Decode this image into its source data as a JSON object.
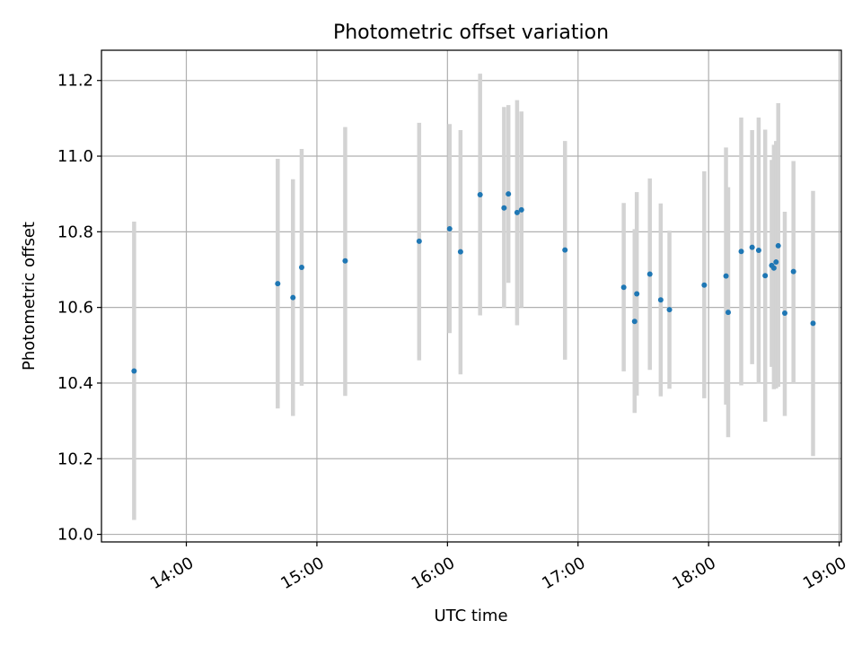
{
  "chart_data": {
    "type": "scatter",
    "title": "Photometric offset variation",
    "xlabel": "UTC time",
    "ylabel": "Photometric offset",
    "xlim": [
      "13:21",
      "19:01"
    ],
    "ylim": [
      9.98,
      11.28
    ],
    "xticks": [
      "14:00",
      "15:00",
      "16:00",
      "17:00",
      "18:00",
      "19:00"
    ],
    "yticks": [
      "10.0",
      "10.2",
      "10.4",
      "10.6",
      "10.8",
      "11.0",
      "11.2"
    ],
    "grid": true,
    "colors": {
      "point": "#1f77b4",
      "errorbar": "#d3d3d3",
      "grid": "#b0b0b0"
    },
    "points": [
      {
        "x": "13:36",
        "y": 10.432,
        "ylow": 10.038,
        "yhigh": 10.827
      },
      {
        "x": "14:42",
        "y": 10.663,
        "ylow": 10.333,
        "yhigh": 10.993
      },
      {
        "x": "14:49",
        "y": 10.626,
        "ylow": 10.313,
        "yhigh": 10.939
      },
      {
        "x": "14:53",
        "y": 10.706,
        "ylow": 10.393,
        "yhigh": 11.019
      },
      {
        "x": "15:13",
        "y": 10.723,
        "ylow": 10.366,
        "yhigh": 11.077
      },
      {
        "x": "15:47",
        "y": 10.775,
        "ylow": 10.46,
        "yhigh": 11.088
      },
      {
        "x": "16:01",
        "y": 10.808,
        "ylow": 10.532,
        "yhigh": 11.085
      },
      {
        "x": "16:06",
        "y": 10.747,
        "ylow": 10.423,
        "yhigh": 11.069
      },
      {
        "x": "16:15",
        "y": 10.898,
        "ylow": 10.579,
        "yhigh": 11.218
      },
      {
        "x": "16:26",
        "y": 10.863,
        "ylow": 10.598,
        "yhigh": 11.13
      },
      {
        "x": "16:28",
        "y": 10.9,
        "ylow": 10.665,
        "yhigh": 11.135
      },
      {
        "x": "16:32",
        "y": 10.851,
        "ylow": 10.553,
        "yhigh": 11.148
      },
      {
        "x": "16:34",
        "y": 10.858,
        "ylow": 10.6,
        "yhigh": 11.118
      },
      {
        "x": "16:54",
        "y": 10.752,
        "ylow": 10.462,
        "yhigh": 11.04
      },
      {
        "x": "17:21",
        "y": 10.653,
        "ylow": 10.431,
        "yhigh": 10.876
      },
      {
        "x": "17:26",
        "y": 10.563,
        "ylow": 10.321,
        "yhigh": 10.807
      },
      {
        "x": "17:27",
        "y": 10.636,
        "ylow": 10.367,
        "yhigh": 10.905
      },
      {
        "x": "17:33",
        "y": 10.688,
        "ylow": 10.435,
        "yhigh": 10.941
      },
      {
        "x": "17:38",
        "y": 10.62,
        "ylow": 10.365,
        "yhigh": 10.875
      },
      {
        "x": "17:42",
        "y": 10.594,
        "ylow": 10.385,
        "yhigh": 10.803
      },
      {
        "x": "17:58",
        "y": 10.659,
        "ylow": 10.36,
        "yhigh": 10.96
      },
      {
        "x": "18:08",
        "y": 10.683,
        "ylow": 10.343,
        "yhigh": 11.023
      },
      {
        "x": "18:09",
        "y": 10.587,
        "ylow": 10.257,
        "yhigh": 10.918
      },
      {
        "x": "18:15",
        "y": 10.748,
        "ylow": 10.394,
        "yhigh": 11.102
      },
      {
        "x": "18:20",
        "y": 10.759,
        "ylow": 10.45,
        "yhigh": 11.069
      },
      {
        "x": "18:23",
        "y": 10.751,
        "ylow": 10.398,
        "yhigh": 11.102
      },
      {
        "x": "18:26",
        "y": 10.684,
        "ylow": 10.298,
        "yhigh": 11.07
      },
      {
        "x": "18:29",
        "y": 10.711,
        "ylow": 10.443,
        "yhigh": 10.99
      },
      {
        "x": "18:30",
        "y": 10.704,
        "ylow": 10.384,
        "yhigh": 11.03
      },
      {
        "x": "18:31",
        "y": 10.72,
        "ylow": 10.386,
        "yhigh": 11.04
      },
      {
        "x": "18:32",
        "y": 10.763,
        "ylow": 10.39,
        "yhigh": 11.14
      },
      {
        "x": "18:35",
        "y": 10.585,
        "ylow": 10.313,
        "yhigh": 10.853
      },
      {
        "x": "18:39",
        "y": 10.695,
        "ylow": 10.4,
        "yhigh": 10.987
      },
      {
        "x": "18:48",
        "y": 10.558,
        "ylow": 10.207,
        "yhigh": 10.908
      }
    ]
  }
}
